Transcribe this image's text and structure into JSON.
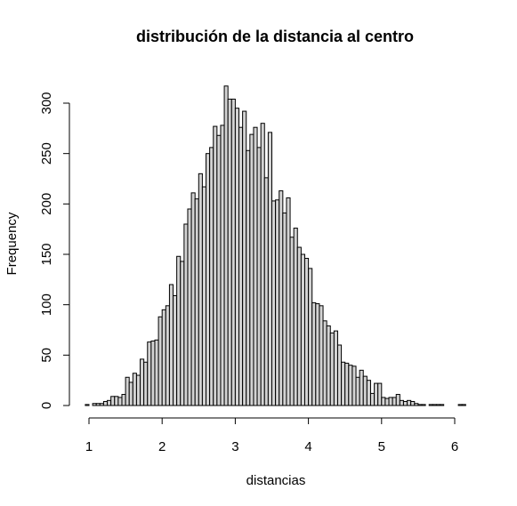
{
  "chart_data": {
    "type": "bar",
    "title": "distribución de la distancia al centro",
    "xlabel": "distancias",
    "ylabel": "Frequency",
    "bin_width": 0.05,
    "x_range": [
      0.95,
      6.15
    ],
    "ylim": [
      0,
      320
    ],
    "x_ticks": [
      1,
      2,
      3,
      4,
      5,
      6
    ],
    "y_ticks": [
      0,
      50,
      100,
      150,
      200,
      250,
      300
    ],
    "bins_start": 0.95,
    "values": [
      1,
      0,
      2,
      2,
      2,
      4,
      5,
      9,
      9,
      8,
      11,
      28,
      23,
      32,
      30,
      46,
      43,
      63,
      64,
      65,
      88,
      95,
      99,
      120,
      109,
      148,
      143,
      180,
      195,
      211,
      205,
      230,
      217,
      250,
      256,
      277,
      268,
      278,
      317,
      304,
      304,
      295,
      276,
      292,
      253,
      269,
      276,
      256,
      280,
      226,
      271,
      203,
      204,
      213,
      191,
      206,
      167,
      176,
      157,
      150,
      146,
      136,
      102,
      101,
      99,
      84,
      79,
      72,
      74,
      60,
      43,
      42,
      40,
      39,
      28,
      35,
      29,
      25,
      12,
      22,
      22,
      8,
      7,
      8,
      8,
      11,
      5,
      4,
      5,
      4,
      2,
      1,
      1,
      0,
      1,
      1,
      1,
      1,
      0,
      0,
      0,
      0,
      1,
      1
    ]
  }
}
